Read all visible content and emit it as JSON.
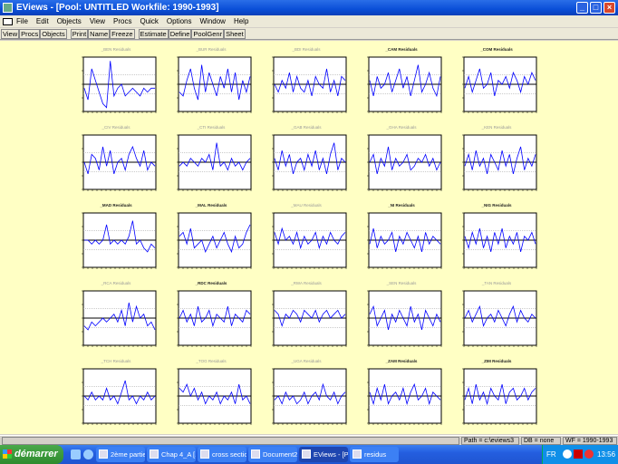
{
  "window": {
    "title": "EViews - [Pool: UNTITLED   Workfile: 1990-1993]",
    "controls": [
      "_",
      "□",
      "×"
    ]
  },
  "menu": [
    "File",
    "Edit",
    "Objects",
    "View",
    "Procs",
    "Quick",
    "Options",
    "Window",
    "Help"
  ],
  "toolbar": [
    [
      "View",
      "Procs",
      "Objects"
    ],
    [
      "Print",
      "Name",
      "Freeze"
    ],
    [
      "Estimate",
      "Define",
      "PoolGenr",
      "Sheet"
    ]
  ],
  "colors": {
    "background": "#ffffc4",
    "line": "#0000ff"
  },
  "status": {
    "path": "Path = c:\\eviews3",
    "db": "DB = none",
    "wf": "WF = 1990-1993"
  },
  "taskbar": {
    "start": "démarrer",
    "tasks": [
      "2ème partie",
      "Chap 4_A [...",
      "cross sectio...",
      "Document2 ...",
      "EViews - [Po...",
      "residus"
    ],
    "lang": "FR",
    "clock": "13:56"
  },
  "chart_data": {
    "type": "line",
    "panels": [
      {
        "title": "_BEN Residuals",
        "values": [
          -1,
          -4,
          4,
          1,
          -2,
          -5,
          -6,
          6,
          -3,
          -1,
          0,
          -3,
          -2,
          -1,
          -2,
          -3,
          -1,
          -2,
          -1,
          -1
        ]
      },
      {
        "title": "_BUR Residuals",
        "values": [
          -2,
          -3,
          1,
          4,
          -1,
          -4,
          5,
          -2,
          3,
          0,
          -3,
          2,
          -1,
          4,
          -2,
          3,
          -4,
          1,
          -2,
          2
        ]
      },
      {
        "title": "_BDI Residuals",
        "values": [
          0,
          -2,
          1,
          -1,
          3,
          -2,
          2,
          -1,
          -2,
          1,
          -3,
          2,
          0,
          -1,
          4,
          -2,
          1,
          -3,
          2,
          1
        ]
      },
      {
        "title": "_CAM Residuals",
        "values": [
          1,
          -3,
          2,
          -1,
          0,
          3,
          -2,
          1,
          4,
          -1,
          2,
          -3,
          1,
          5,
          -2,
          0,
          3,
          -1,
          -3,
          2
        ]
      },
      {
        "title": "_COM Residuals",
        "values": [
          -1,
          2,
          -2,
          1,
          4,
          -1,
          0,
          3,
          -3,
          1,
          0,
          2,
          -1,
          3,
          1,
          -2,
          2,
          0,
          3,
          1
        ]
      },
      {
        "title": "_CIV Residuals",
        "values": [
          0,
          -3,
          2,
          1,
          -2,
          4,
          -1,
          3,
          -3,
          0,
          1,
          -2,
          2,
          4,
          1,
          -1,
          3,
          -2,
          0,
          -1
        ]
      },
      {
        "title": "_CTI Residuals",
        "values": [
          -1,
          0,
          -1,
          1,
          0,
          -1,
          1,
          0,
          2,
          -2,
          5,
          -1,
          0,
          -2,
          1,
          -1,
          0,
          -2,
          0,
          1
        ]
      },
      {
        "title": "_GAB Residuals",
        "values": [
          1,
          -2,
          3,
          -1,
          2,
          -3,
          0,
          1,
          -2,
          2,
          -1,
          3,
          -2,
          1,
          -3,
          2,
          5,
          -2,
          1,
          0
        ]
      },
      {
        "title": "_GHA Residuals",
        "values": [
          0,
          2,
          -3,
          1,
          -1,
          4,
          -2,
          1,
          -1,
          0,
          2,
          -2,
          -1,
          1,
          0,
          2,
          -1,
          1,
          -2,
          0
        ]
      },
      {
        "title": "_KEN Residuals",
        "values": [
          -1,
          2,
          -2,
          3,
          -1,
          1,
          -3,
          2,
          0,
          -2,
          3,
          -1,
          2,
          -3,
          1,
          4,
          -2,
          1,
          -1,
          2
        ]
      },
      {
        "title": "_MAD Residuals",
        "values": [
          0,
          0,
          -1,
          0,
          -1,
          0,
          4,
          -1,
          0,
          -1,
          0,
          -1,
          1,
          5,
          -1,
          0,
          -2,
          -3,
          -1,
          -2
        ]
      },
      {
        "title": "_MAL Residuals",
        "values": [
          1,
          2,
          -1,
          3,
          -2,
          -1,
          0,
          -3,
          -1,
          1,
          -2,
          0,
          2,
          -1,
          -3,
          1,
          -2,
          -1,
          2,
          4
        ]
      },
      {
        "title": "_MAU Residuals",
        "values": [
          2,
          -1,
          3,
          0,
          1,
          -1,
          2,
          -2,
          1,
          -1,
          0,
          2,
          -2,
          1,
          -1,
          2,
          0,
          -1,
          1,
          2
        ]
      },
      {
        "title": "_NI Residuals",
        "values": [
          -1,
          3,
          -2,
          1,
          -1,
          0,
          2,
          -3,
          1,
          -1,
          2,
          0,
          -2,
          1,
          -3,
          2,
          -1,
          1,
          0,
          -1
        ]
      },
      {
        "title": "_NIG Residuals",
        "values": [
          1,
          -2,
          2,
          -1,
          3,
          -2,
          1,
          -3,
          2,
          -1,
          3,
          -2,
          1,
          -1,
          2,
          -3,
          1,
          0,
          2,
          -1
        ]
      },
      {
        "title": "_RCA Residuals",
        "values": [
          -2,
          -3,
          -1,
          -2,
          -1,
          0,
          -1,
          0,
          1,
          -1,
          2,
          -2,
          4,
          -1,
          3,
          0,
          1,
          -2,
          -1,
          -3
        ]
      },
      {
        "title": "_RDC Residuals",
        "values": [
          0,
          2,
          -1,
          1,
          -2,
          3,
          -1,
          0,
          2,
          -2,
          1,
          0,
          -1,
          3,
          -2,
          1,
          0,
          -1,
          2,
          1
        ]
      },
      {
        "title": "_RWA Residuals",
        "values": [
          2,
          1,
          -2,
          1,
          0,
          2,
          1,
          -1,
          2,
          1,
          0,
          2,
          -1,
          1,
          2,
          0,
          1,
          2,
          0,
          1
        ]
      },
      {
        "title": "_SEN Residuals",
        "values": [
          1,
          3,
          -2,
          0,
          2,
          -3,
          1,
          -1,
          2,
          0,
          -2,
          3,
          -1,
          1,
          -3,
          2,
          0,
          -2,
          1,
          -1
        ]
      },
      {
        "title": "_TAN Residuals",
        "values": [
          0,
          2,
          -1,
          1,
          3,
          -2,
          0,
          1,
          -1,
          2,
          0,
          -2,
          1,
          3,
          -1,
          2,
          0,
          -1,
          1,
          0
        ]
      },
      {
        "title": "_TCH Residuals",
        "values": [
          0,
          -1,
          1,
          -1,
          0,
          -1,
          2,
          -1,
          0,
          -2,
          1,
          4,
          -1,
          0,
          -2,
          0,
          -1,
          1,
          -1,
          0
        ]
      },
      {
        "title": "_TOG Residuals",
        "values": [
          2,
          1,
          3,
          0,
          2,
          -1,
          1,
          -2,
          0,
          -1,
          1,
          -2,
          0,
          -1,
          1,
          -2,
          3,
          -1,
          0,
          -2
        ]
      },
      {
        "title": "_UGA Residuals",
        "values": [
          -1,
          0,
          -2,
          1,
          -1,
          0,
          -2,
          -1,
          1,
          -2,
          0,
          1,
          -1,
          3,
          0,
          -1,
          1,
          -2,
          0,
          1
        ]
      },
      {
        "title": "_ZAM Residuals",
        "values": [
          1,
          -2,
          2,
          -1,
          3,
          -2,
          0,
          1,
          -1,
          2,
          -2,
          1,
          3,
          -1,
          0,
          2,
          -2,
          1,
          0,
          -1
        ]
      },
      {
        "title": "_ZIM Residuals",
        "values": [
          -1,
          2,
          -2,
          3,
          -1,
          1,
          -2,
          2,
          0,
          -1,
          3,
          -2,
          1,
          2,
          -1,
          0,
          2,
          -1,
          1,
          2
        ]
      }
    ]
  }
}
